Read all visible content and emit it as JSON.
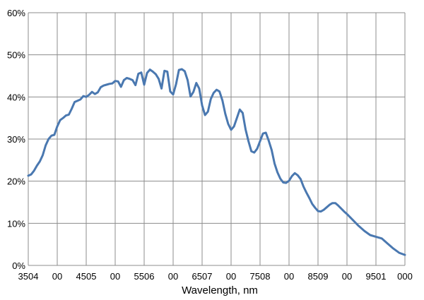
{
  "chart_data": {
    "type": "line",
    "title": "",
    "xlabel": "Wavelength, nm",
    "ylabel": "",
    "xlim": [
      350,
      1000
    ],
    "ylim": [
      0,
      0.6
    ],
    "x_tick_labels": [
      "3504",
      "00",
      "4505",
      "00",
      "5506",
      "00",
      "6507",
      "00",
      "7508",
      "00",
      "8509",
      "00",
      "9501",
      "000"
    ],
    "y_tick_labels": [
      "0%",
      "10%",
      "20%",
      "30%",
      "40%",
      "50%",
      "60%"
    ],
    "grid": true,
    "legend": "none",
    "series": [
      {
        "color": "#4a78b0",
        "x": [
          350,
          355,
          360,
          365,
          370,
          375,
          380,
          385,
          390,
          395,
          400,
          405,
          410,
          415,
          420,
          425,
          430,
          435,
          440,
          445,
          450,
          455,
          460,
          465,
          470,
          475,
          480,
          485,
          490,
          495,
          500,
          505,
          510,
          515,
          520,
          525,
          530,
          535,
          540,
          545,
          550,
          555,
          560,
          565,
          570,
          575,
          580,
          585,
          590,
          595,
          600,
          605,
          610,
          615,
          620,
          625,
          630,
          635,
          640,
          645,
          650,
          655,
          660,
          665,
          670,
          675,
          680,
          685,
          690,
          695,
          700,
          705,
          710,
          715,
          720,
          725,
          730,
          735,
          740,
          745,
          750,
          755,
          760,
          765,
          770,
          775,
          780,
          785,
          790,
          795,
          800,
          805,
          810,
          815,
          820,
          825,
          830,
          835,
          840,
          845,
          850,
          855,
          860,
          865,
          870,
          875,
          880,
          885,
          890,
          895,
          900,
          910,
          920,
          930,
          940,
          950,
          960,
          970,
          980,
          990,
          1000
        ],
        "y": [
          0.213,
          0.216,
          0.225,
          0.237,
          0.247,
          0.262,
          0.285,
          0.3,
          0.308,
          0.31,
          0.33,
          0.345,
          0.35,
          0.356,
          0.358,
          0.372,
          0.388,
          0.391,
          0.394,
          0.402,
          0.4,
          0.405,
          0.412,
          0.407,
          0.411,
          0.423,
          0.427,
          0.429,
          0.431,
          0.432,
          0.438,
          0.437,
          0.424,
          0.44,
          0.445,
          0.443,
          0.44,
          0.428,
          0.455,
          0.458,
          0.429,
          0.457,
          0.465,
          0.46,
          0.454,
          0.443,
          0.42,
          0.462,
          0.46,
          0.413,
          0.406,
          0.43,
          0.464,
          0.466,
          0.461,
          0.44,
          0.401,
          0.412,
          0.433,
          0.42,
          0.38,
          0.357,
          0.365,
          0.395,
          0.41,
          0.417,
          0.413,
          0.392,
          0.36,
          0.336,
          0.322,
          0.33,
          0.35,
          0.37,
          0.362,
          0.323,
          0.295,
          0.271,
          0.268,
          0.277,
          0.295,
          0.313,
          0.315,
          0.296,
          0.274,
          0.242,
          0.221,
          0.206,
          0.197,
          0.196,
          0.201,
          0.212,
          0.219,
          0.214,
          0.205,
          0.187,
          0.173,
          0.16,
          0.146,
          0.137,
          0.129,
          0.128,
          0.132,
          0.138,
          0.144,
          0.148,
          0.148,
          0.142,
          0.135,
          0.128,
          0.122,
          0.108,
          0.094,
          0.082,
          0.072,
          0.068,
          0.064,
          0.052,
          0.04,
          0.03,
          0.025
        ]
      }
    ]
  }
}
